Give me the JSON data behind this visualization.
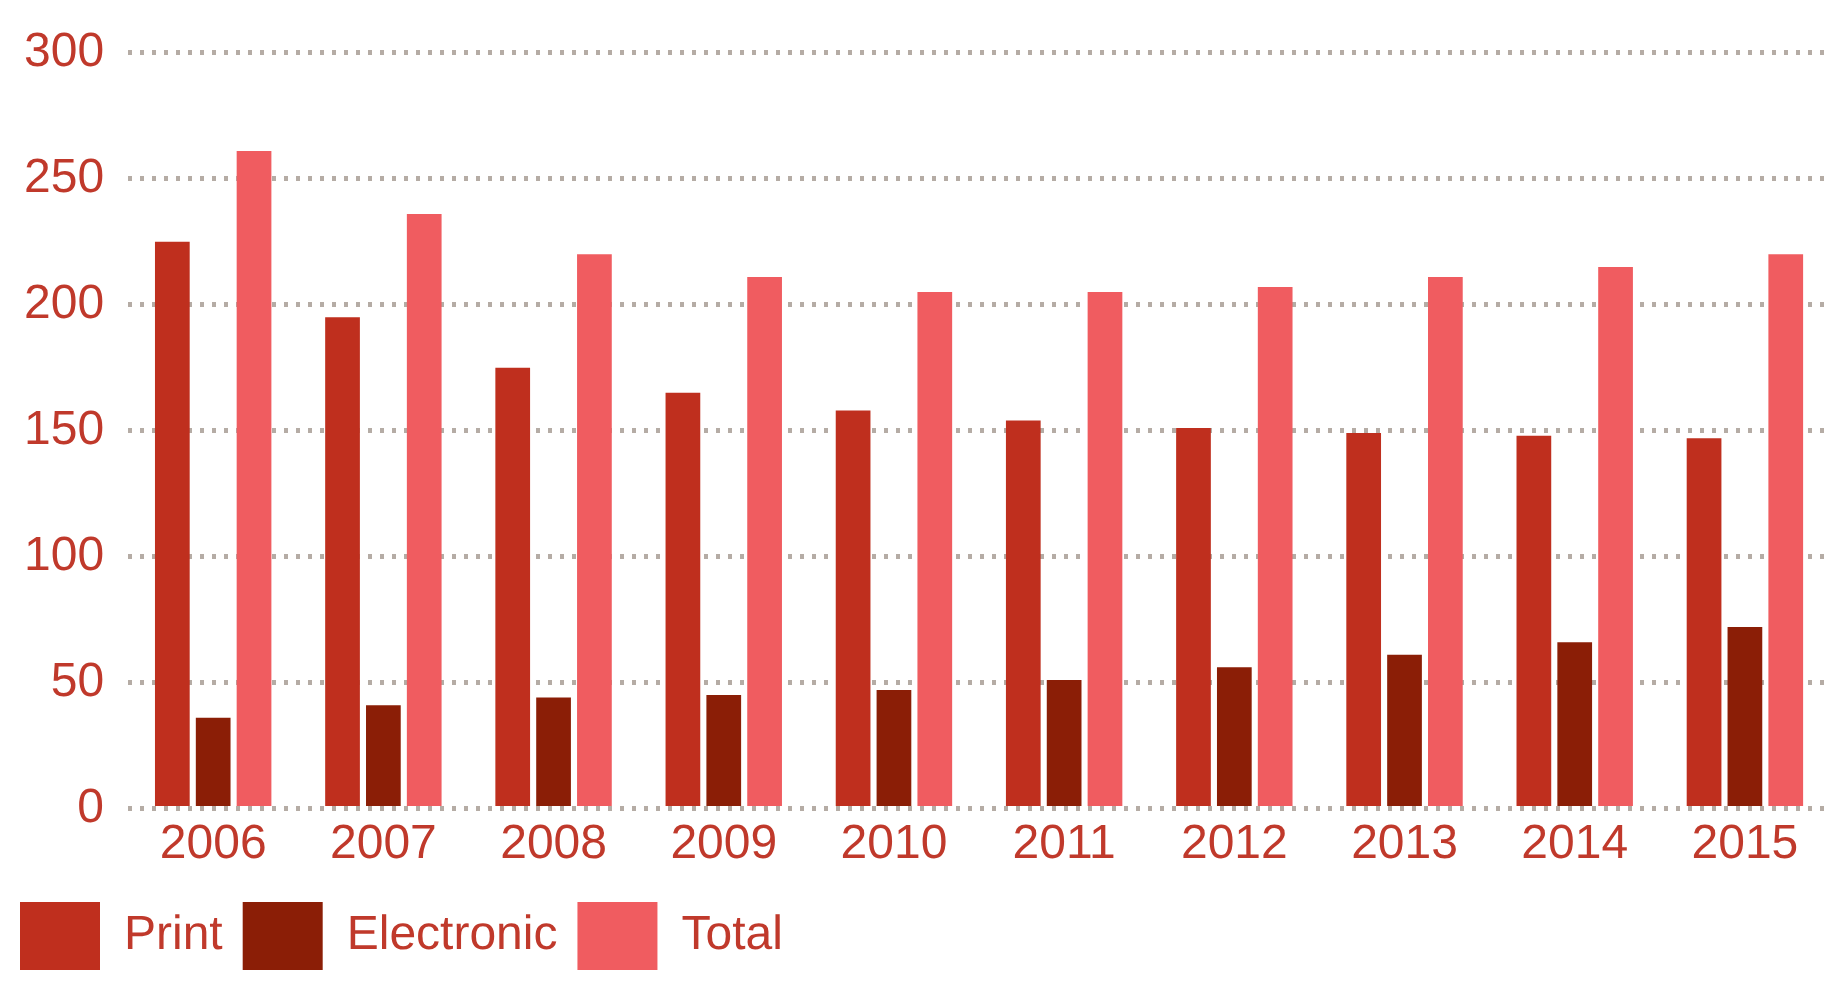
{
  "chart_data": {
    "type": "bar",
    "categories": [
      "2006",
      "2007",
      "2008",
      "2009",
      "2010",
      "2011",
      "2012",
      "2013",
      "2014",
      "2015"
    ],
    "series": [
      {
        "name": "Print",
        "color": "#bf2f1e",
        "values": [
          225,
          195,
          175,
          165,
          158,
          154,
          151,
          149,
          148,
          147
        ]
      },
      {
        "name": "Electronic",
        "color": "#8b1e06",
        "values": [
          36,
          41,
          44,
          45,
          47,
          51,
          56,
          61,
          66,
          72
        ]
      },
      {
        "name": "Total",
        "color": "#f05c60",
        "values": [
          261,
          236,
          220,
          211,
          205,
          205,
          207,
          211,
          215,
          220
        ]
      }
    ],
    "ylim": [
      0,
      300
    ],
    "yticks": [
      0,
      50,
      100,
      150,
      200,
      250,
      300
    ],
    "grid": "y",
    "legend": "bottom"
  }
}
